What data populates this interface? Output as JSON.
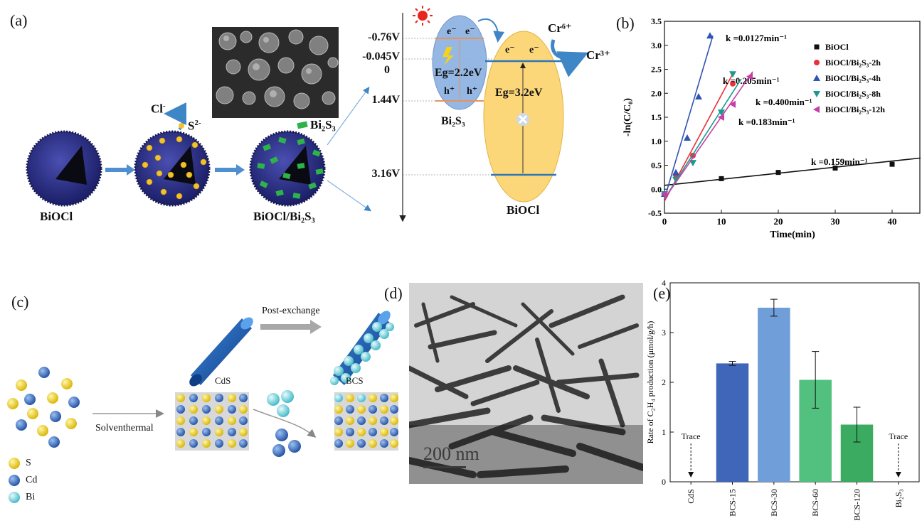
{
  "panels": {
    "a": {
      "label": "(a)",
      "ions": {
        "cl": "Cl",
        "cl_sup": "-",
        "s": "S",
        "s_sup": "2-",
        "bi2s3": "Bi₂S₃"
      },
      "names": {
        "biocl": "BiOCl",
        "composite": "BiOCl/Bi₂S₃"
      },
      "levels": [
        "-0.76V",
        "-0.045V",
        "0",
        "1.44V",
        "3.16V"
      ],
      "bands": {
        "bi2s3_gap": "Eg=2.2eV",
        "bi2s3_name": "Bi₂S₃",
        "biocl_gap": "Eg=3.2eV",
        "biocl_name": "BiOCl",
        "electron": "e⁻",
        "hole": "h⁺",
        "cr6": "Cr⁶⁺",
        "cr3": "Cr³⁺"
      },
      "colors": {
        "sphere": "#2b2f8c",
        "sulfide_dot": "#f2c12e",
        "bi2s3_sheet": "#2db34a",
        "bi2s3_band": "#8fb4e3",
        "biocl_band": "#fcd77a",
        "arrow": "#3e86c6"
      }
    },
    "b": {
      "label": "(b)"
    },
    "c": {
      "label": "(c)",
      "texts": {
        "post_exchange": "Post-exchange",
        "solvothermal": "Solventhermal",
        "cds": "CdS",
        "bcs": "BCS"
      },
      "legend": [
        {
          "label": "S",
          "color": "#f3d22c"
        },
        {
          "label": "Cd",
          "color": "#3b6fc2"
        },
        {
          "label": "Bi",
          "color": "#6fd6e0"
        }
      ]
    },
    "d": {
      "label": "(d)",
      "scale_bar": "200 nm"
    },
    "e": {
      "label": "(e)"
    }
  },
  "chart_data": [
    {
      "type": "scatter",
      "xlabel": "Time(min)",
      "ylabel": "-ln(C/C₀)",
      "xlim": [
        0,
        45
      ],
      "ylim": [
        -0.5,
        3.5
      ],
      "x_ticks": [
        0,
        10,
        20,
        30,
        40
      ],
      "y_ticks": [
        -0.5,
        0.0,
        0.5,
        1.0,
        1.5,
        2.0,
        2.5,
        3.0,
        3.5
      ],
      "legend_position": "top-right",
      "series": [
        {
          "name": "BiOCl",
          "color": "#111111",
          "marker": "square",
          "x": [
            0,
            10,
            20,
            30,
            40
          ],
          "y": [
            -0.1,
            0.22,
            0.35,
            0.44,
            0.52
          ],
          "fit": {
            "x": [
              0,
              45
            ],
            "y": [
              0.08,
              0.65
            ]
          },
          "rate": "k =0.0127min⁻¹"
        },
        {
          "name": "BiOCl/Bi₂S₃-2h",
          "color": "#e8313a",
          "marker": "circle",
          "x": [
            0,
            2,
            5,
            12
          ],
          "y": [
            -0.1,
            0.3,
            0.7,
            2.2
          ],
          "fit": {
            "x": [
              0,
              12.2
            ],
            "y": [
              -0.25,
              2.45
            ]
          },
          "rate": "k =0.205min⁻¹"
        },
        {
          "name": "BiOCl/Bi₂S₃-4h",
          "color": "#2f54b3",
          "marker": "triangle-up",
          "x": [
            0,
            2,
            4,
            6,
            8
          ],
          "y": [
            -0.1,
            0.35,
            1.07,
            1.93,
            3.2
          ],
          "fit": {
            "x": [
              0,
              8.5
            ],
            "y": [
              -0.2,
              3.2
            ]
          },
          "rate": "k =0.400min⁻¹"
        },
        {
          "name": "BiOCl/Bi₂S₃-8h",
          "color": "#199a8a",
          "marker": "triangle-down",
          "x": [
            0,
            2,
            5,
            10,
            12
          ],
          "y": [
            -0.1,
            0.2,
            0.55,
            1.6,
            2.4
          ],
          "fit": {
            "x": [
              0,
              13.5
            ],
            "y": [
              -0.2,
              2.3
            ]
          },
          "rate": "k =0.183min⁻¹"
        },
        {
          "name": "BiOCl/Bi₂S₃-12h",
          "color": "#c63fa9",
          "marker": "triangle-left",
          "x": [
            0,
            10,
            12,
            15
          ],
          "y": [
            -0.1,
            1.5,
            1.77,
            2.35
          ],
          "fit": {
            "x": [
              0,
              15.5
            ],
            "y": [
              -0.2,
              2.45
            ]
          },
          "rate": "k =0.159min⁻¹"
        }
      ]
    },
    {
      "type": "bar",
      "ylabel": "Rate of C₂H₄ production (μmol/g/h)",
      "ylim": [
        0,
        4
      ],
      "y_ticks": [
        0,
        1,
        2,
        3,
        4
      ],
      "categories": [
        "CdS",
        "BCS-15",
        "BCS-30",
        "BCS-60",
        "BCS-120",
        "Bi₂S₃"
      ],
      "values": [
        0,
        2.38,
        3.5,
        2.05,
        1.15,
        0
      ],
      "errors": [
        0,
        0.04,
        0.17,
        0.57,
        0.35,
        0
      ],
      "colors": [
        "#000000",
        "#3f66b8",
        "#6f9ed8",
        "#52c07e",
        "#3aab60",
        "#000000"
      ],
      "trace_label": "Trace",
      "trace_categories": [
        "CdS",
        "Bi₂S₃"
      ]
    }
  ]
}
